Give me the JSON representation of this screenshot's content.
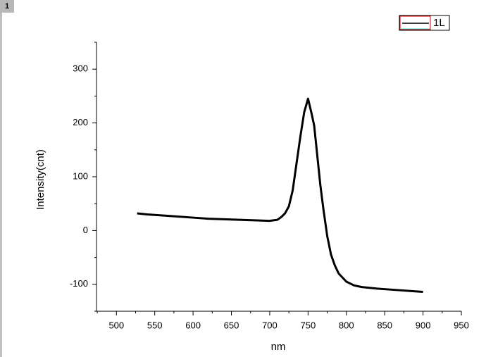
{
  "page_tab": "1",
  "chart_data": {
    "type": "line",
    "x_label": "nm",
    "y_label": "Intensity(cnt)",
    "x": [
      527,
      540,
      560,
      580,
      600,
      620,
      640,
      660,
      680,
      700,
      710,
      715,
      720,
      725,
      730,
      735,
      740,
      745,
      750,
      755,
      758,
      762,
      766,
      770,
      775,
      780,
      785,
      790,
      800,
      810,
      820,
      840,
      860,
      880,
      900
    ],
    "series": [
      {
        "name": "1L",
        "color": "#000000",
        "values": [
          32,
          30,
          28,
          26,
          24,
          22,
          21,
          20,
          19,
          18,
          20,
          25,
          32,
          45,
          75,
          125,
          175,
          220,
          245,
          215,
          195,
          140,
          85,
          40,
          -10,
          -45,
          -65,
          -80,
          -95,
          -102,
          -105,
          -108,
          -110,
          -112,
          -114
        ]
      }
    ],
    "xlim": [
      474,
      950
    ],
    "xticks": [
      500,
      550,
      600,
      650,
      700,
      750,
      800,
      850,
      900,
      950
    ],
    "xminorticks": [
      475,
      525,
      575,
      625,
      675,
      725,
      775,
      825,
      875,
      925
    ],
    "ylim": [
      -150,
      350
    ],
    "yticks": [
      -100,
      0,
      100,
      200,
      300
    ],
    "yminorticks": [
      -150,
      -50,
      50,
      150,
      250,
      350
    ],
    "legend": "top-right"
  }
}
